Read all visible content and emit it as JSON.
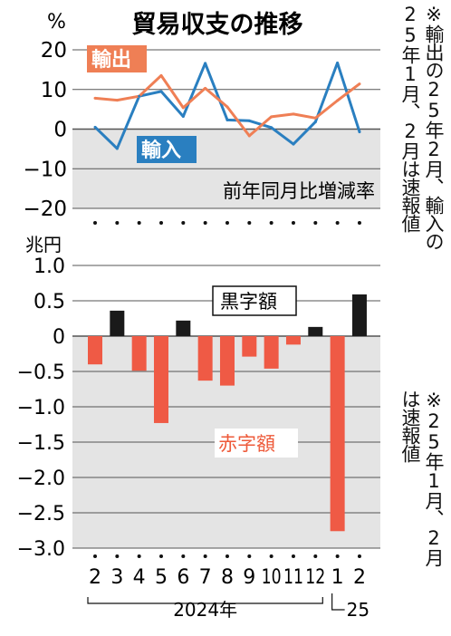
{
  "title": "貿易収支の推移",
  "note_top": "※輸出の25年2月、輸入の25年1月、2月は速報値",
  "note_bottom": "※25年1月、2月は速報値",
  "colors": {
    "export": "#ef7f55",
    "import": "#2a7fc0",
    "surplus": "#1a1a1a",
    "deficit": "#ef5a45",
    "negative_bg": "#e4e4e4",
    "deficit_text": "#ee5a3a"
  },
  "x_labels": [
    "2",
    "3",
    "4",
    "5",
    "6",
    "7",
    "8",
    "9",
    "10",
    "11",
    "12",
    "1",
    "2"
  ],
  "year_2024": "2024年",
  "year_2025": "25",
  "chart_data": [
    {
      "type": "line",
      "unit": "%",
      "ylim": [
        -20,
        20
      ],
      "yticks": [
        20,
        10,
        0,
        -10,
        -20
      ],
      "ytick_labels": [
        "20",
        "10",
        "0",
        "−10",
        "−20"
      ],
      "annotation": "前年同月比増減率",
      "series": [
        {
          "name": "輸出",
          "values": [
            7.8,
            7.3,
            8.3,
            13.5,
            5.4,
            10.3,
            5.6,
            -1.7,
            3.1,
            3.8,
            2.8,
            7.2,
            11.4
          ]
        },
        {
          "name": "輸入",
          "values": [
            0.5,
            -4.9,
            8.3,
            9.5,
            3.2,
            16.6,
            2.3,
            2.1,
            0.4,
            -3.8,
            1.8,
            16.7,
            -0.7
          ]
        }
      ]
    },
    {
      "type": "bar",
      "unit": "兆円",
      "ylim": [
        -3.0,
        1.0
      ],
      "yticks": [
        1.0,
        0.5,
        0,
        -0.5,
        -1.0,
        -1.5,
        -2.0,
        -2.5,
        -3.0
      ],
      "ytick_labels": [
        "1.0",
        "0.5",
        "0",
        "−0.5",
        "−1.0",
        "−1.5",
        "−2.0",
        "−2.5",
        "−3.0"
      ],
      "legend_surplus": "黒字額",
      "legend_deficit": "赤字額",
      "values": [
        -0.4,
        0.36,
        -0.49,
        -1.23,
        0.22,
        -0.63,
        -0.7,
        -0.29,
        -0.46,
        -0.12,
        0.13,
        -2.76,
        0.59
      ]
    }
  ]
}
